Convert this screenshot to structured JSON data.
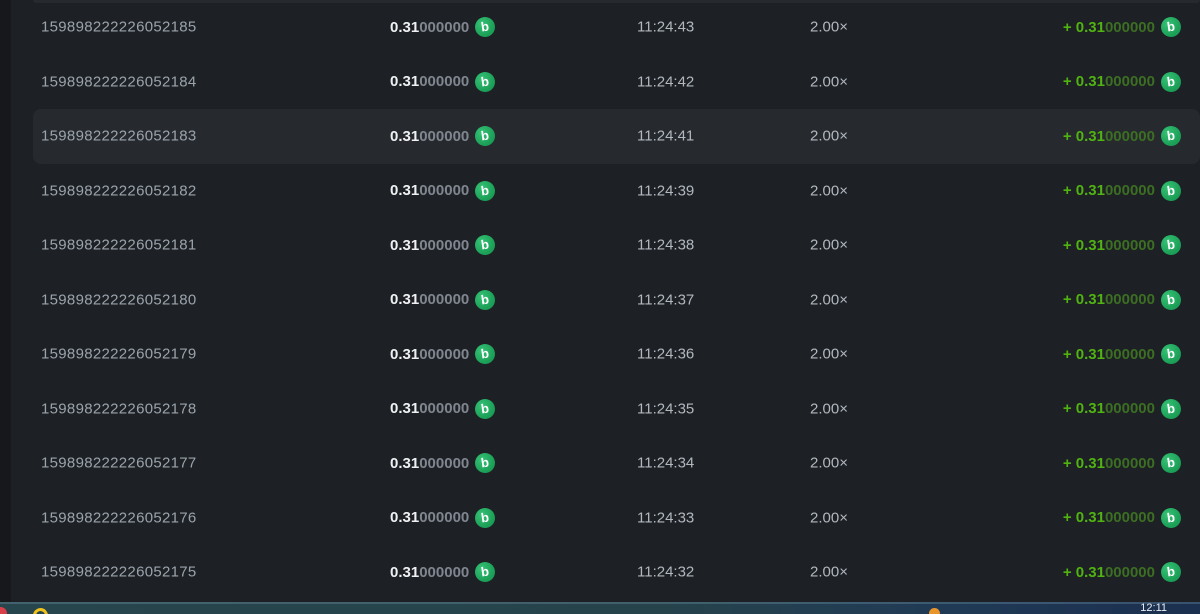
{
  "table": {
    "coin_letter": "b",
    "highlighted_row_index": 2,
    "rows": [
      {
        "id": "159898222226052185",
        "amount": "0.31",
        "amount_zeros": "000000",
        "time": "11:24:43",
        "multiplier": "2.00×",
        "payout": "+ 0.31",
        "payout_zeros": "000000"
      },
      {
        "id": "159898222226052184",
        "amount": "0.31",
        "amount_zeros": "000000",
        "time": "11:24:42",
        "multiplier": "2.00×",
        "payout": "+ 0.31",
        "payout_zeros": "000000"
      },
      {
        "id": "159898222226052183",
        "amount": "0.31",
        "amount_zeros": "000000",
        "time": "11:24:41",
        "multiplier": "2.00×",
        "payout": "+ 0.31",
        "payout_zeros": "000000"
      },
      {
        "id": "159898222226052182",
        "amount": "0.31",
        "amount_zeros": "000000",
        "time": "11:24:39",
        "multiplier": "2.00×",
        "payout": "+ 0.31",
        "payout_zeros": "000000"
      },
      {
        "id": "159898222226052181",
        "amount": "0.31",
        "amount_zeros": "000000",
        "time": "11:24:38",
        "multiplier": "2.00×",
        "payout": "+ 0.31",
        "payout_zeros": "000000"
      },
      {
        "id": "159898222226052180",
        "amount": "0.31",
        "amount_zeros": "000000",
        "time": "11:24:37",
        "multiplier": "2.00×",
        "payout": "+ 0.31",
        "payout_zeros": "000000"
      },
      {
        "id": "159898222226052179",
        "amount": "0.31",
        "amount_zeros": "000000",
        "time": "11:24:36",
        "multiplier": "2.00×",
        "payout": "+ 0.31",
        "payout_zeros": "000000"
      },
      {
        "id": "159898222226052178",
        "amount": "0.31",
        "amount_zeros": "000000",
        "time": "11:24:35",
        "multiplier": "2.00×",
        "payout": "+ 0.31",
        "payout_zeros": "000000"
      },
      {
        "id": "159898222226052177",
        "amount": "0.31",
        "amount_zeros": "000000",
        "time": "11:24:34",
        "multiplier": "2.00×",
        "payout": "+ 0.31",
        "payout_zeros": "000000"
      },
      {
        "id": "159898222226052176",
        "amount": "0.31",
        "amount_zeros": "000000",
        "time": "11:24:33",
        "multiplier": "2.00×",
        "payout": "+ 0.31",
        "payout_zeros": "000000"
      },
      {
        "id": "159898222226052175",
        "amount": "0.31",
        "amount_zeros": "000000",
        "time": "11:24:32",
        "multiplier": "2.00×",
        "payout": "+ 0.31",
        "payout_zeros": "000000"
      }
    ]
  },
  "colors": {
    "coin_green": "#1fa55e",
    "payout_green": "#50b312",
    "row_highlight": "#26292e",
    "panel_background": "#1d2024"
  },
  "taskbar": {
    "clock": "12:11"
  }
}
